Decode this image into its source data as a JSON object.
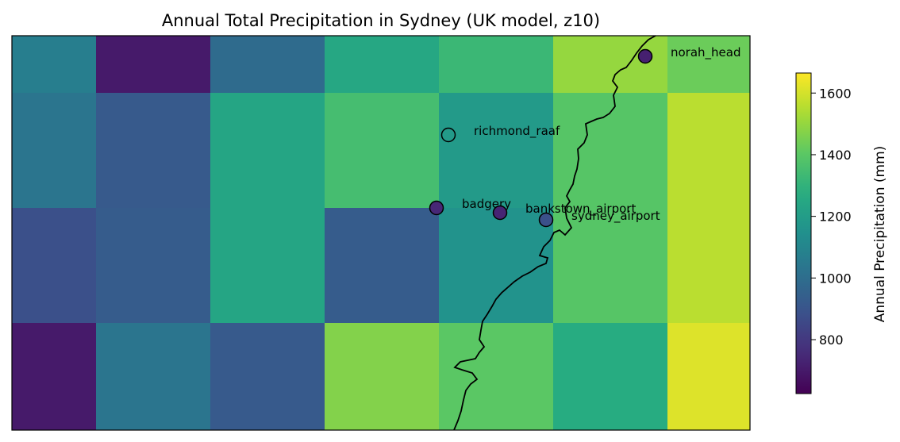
{
  "chart_data": {
    "type": "heatmap",
    "title": "Annual Total Precipitation in Sydney (UK model, z10)",
    "colorbar": {
      "label": "Annual Precipitation (mm)",
      "range": [
        625,
        1665
      ],
      "ticks": [
        800,
        1000,
        1200,
        1400,
        1600
      ],
      "colormap": "viridis"
    },
    "grid_values_mm": [
      [
        1070,
        700,
        990,
        1250,
        1325,
        1500,
        1430
      ],
      [
        1030,
        920,
        1240,
        1350,
        1190,
        1390,
        1560
      ],
      [
        880,
        930,
        1240,
        930,
        1160,
        1390,
        1560
      ],
      [
        700,
        1030,
        920,
        1470,
        1400,
        1270,
        1615
      ]
    ],
    "stations": [
      {
        "name": "norah_head",
        "value_mm": 720
      },
      {
        "name": "richmond_raaf",
        "value_mm": null
      },
      {
        "name": "badgery",
        "value_mm": 740
      },
      {
        "name": "bankstown_airport",
        "value_mm": 730
      },
      {
        "name": "sydney_airport",
        "value_mm": 880
      }
    ],
    "grid": false,
    "axes_ticks_visible": false
  }
}
